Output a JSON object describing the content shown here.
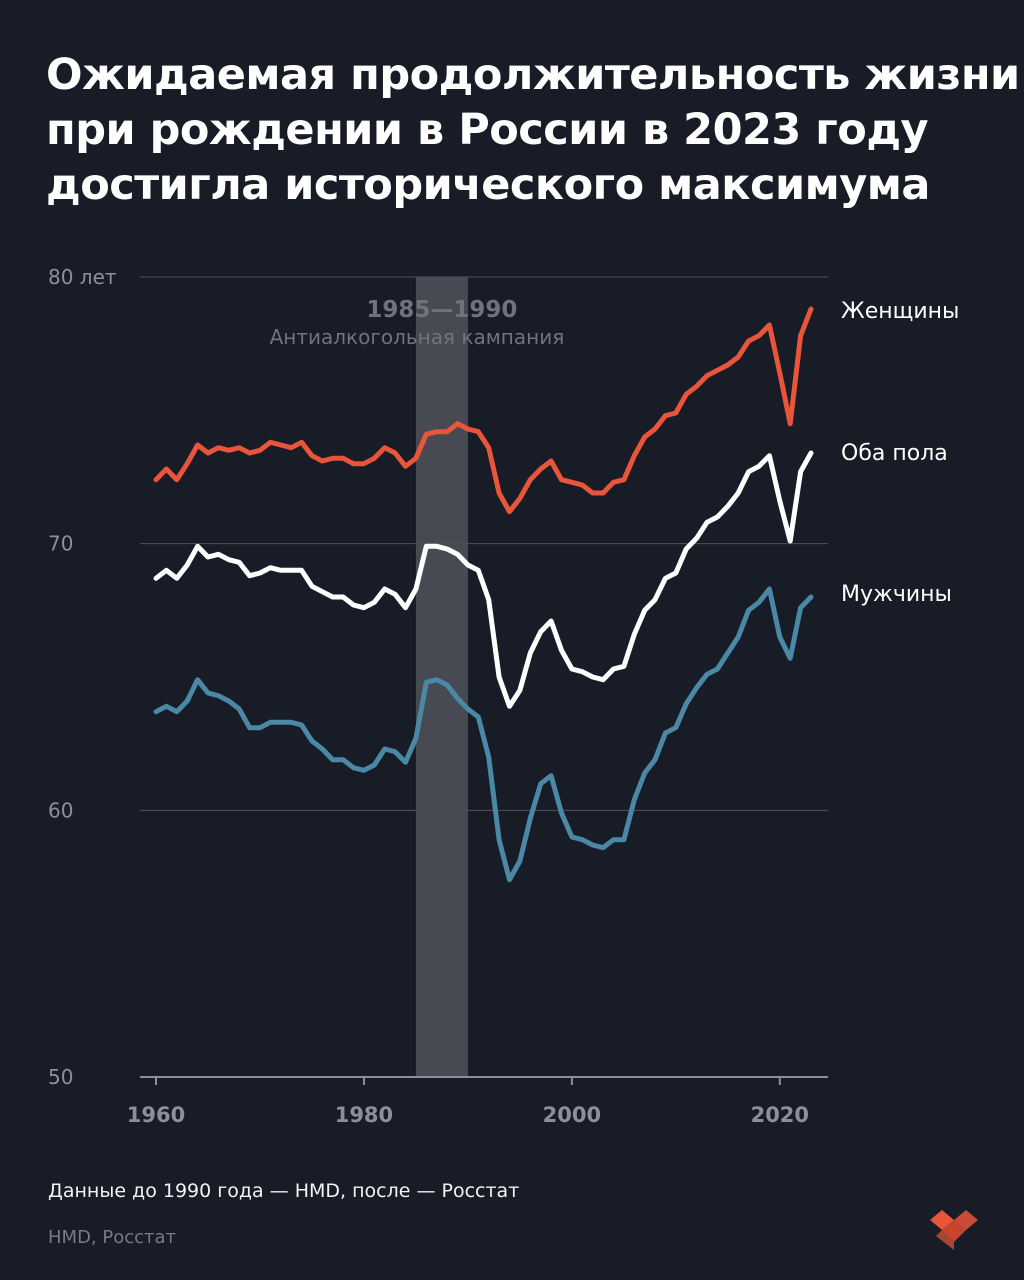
{
  "title_lines": [
    "Ожидаемая продолжительность жизни",
    "при рождении в России в 2023 году",
    "достигла исторического максимума"
  ],
  "note": "Данные до 1990 года — HMD, после — Росстат",
  "source": "HMD, Росстат",
  "colors": {
    "background": "#181c26",
    "women": "#e8553a",
    "both": "#ffffff",
    "men": "#4a88a6",
    "band": "#4a4d55",
    "grid": "#4d525d",
    "tick_text": "#8b909c",
    "logo": "#e8553a"
  },
  "logo_icon": "heart-logo-icon",
  "chart_data": {
    "type": "line",
    "xlim": [
      1960,
      2023
    ],
    "ylim": [
      50,
      80
    ],
    "y_ticks": [
      {
        "value": 80,
        "label": "80 лет"
      },
      {
        "value": 70,
        "label": "70"
      },
      {
        "value": 60,
        "label": "60"
      },
      {
        "value": 50,
        "label": "50"
      }
    ],
    "x_ticks": [
      {
        "value": 1960,
        "label": "1960"
      },
      {
        "value": 1980,
        "label": "1980"
      },
      {
        "value": 2000,
        "label": "2000"
      },
      {
        "value": 2020,
        "label": "2020"
      }
    ],
    "grid": true,
    "highlight": {
      "x_from": 1985,
      "x_to": 1990,
      "label_years": "1985—1990",
      "label_text": "Антиалкогольная кампания"
    },
    "x": [
      1960,
      1961,
      1962,
      1963,
      1964,
      1965,
      1966,
      1967,
      1968,
      1969,
      1970,
      1971,
      1972,
      1973,
      1974,
      1975,
      1976,
      1977,
      1978,
      1979,
      1980,
      1981,
      1982,
      1983,
      1984,
      1985,
      1986,
      1987,
      1988,
      1989,
      1990,
      1991,
      1992,
      1993,
      1994,
      1995,
      1996,
      1997,
      1998,
      1999,
      2000,
      2001,
      2002,
      2003,
      2004,
      2005,
      2006,
      2007,
      2008,
      2009,
      2010,
      2011,
      2012,
      2013,
      2014,
      2015,
      2016,
      2017,
      2018,
      2019,
      2020,
      2021,
      2022,
      2023
    ],
    "series": [
      {
        "name": "Женщины",
        "color": "#e8553a",
        "values": [
          72.4,
          72.8,
          72.4,
          73.0,
          73.7,
          73.4,
          73.6,
          73.5,
          73.6,
          73.4,
          73.5,
          73.8,
          73.7,
          73.6,
          73.8,
          73.3,
          73.1,
          73.2,
          73.2,
          73.0,
          73.0,
          73.2,
          73.6,
          73.4,
          72.9,
          73.2,
          74.1,
          74.2,
          74.2,
          74.5,
          74.3,
          74.2,
          73.6,
          71.9,
          71.2,
          71.7,
          72.4,
          72.8,
          73.1,
          72.4,
          72.3,
          72.2,
          71.9,
          71.9,
          72.3,
          72.4,
          73.3,
          74.0,
          74.3,
          74.8,
          74.9,
          75.6,
          75.9,
          76.3,
          76.5,
          76.7,
          77.0,
          77.6,
          77.8,
          78.2,
          76.4,
          74.5,
          77.8,
          78.8
        ]
      },
      {
        "name": "Оба пола",
        "color": "#ffffff",
        "values": [
          68.7,
          69.0,
          68.7,
          69.2,
          69.9,
          69.5,
          69.6,
          69.4,
          69.3,
          68.8,
          68.9,
          69.1,
          69.0,
          69.0,
          69.0,
          68.4,
          68.2,
          68.0,
          68.0,
          67.7,
          67.6,
          67.8,
          68.3,
          68.1,
          67.6,
          68.3,
          69.9,
          69.9,
          69.8,
          69.6,
          69.2,
          69.0,
          67.9,
          65.0,
          63.9,
          64.5,
          65.9,
          66.7,
          67.1,
          66.0,
          65.3,
          65.2,
          65.0,
          64.9,
          65.3,
          65.4,
          66.6,
          67.5,
          67.9,
          68.7,
          68.9,
          69.8,
          70.2,
          70.8,
          71.0,
          71.4,
          71.9,
          72.7,
          72.9,
          73.3,
          71.6,
          70.1,
          72.7,
          73.4
        ]
      },
      {
        "name": "Мужчины",
        "color": "#4a88a6",
        "values": [
          63.7,
          63.9,
          63.7,
          64.1,
          64.9,
          64.4,
          64.3,
          64.1,
          63.8,
          63.1,
          63.1,
          63.3,
          63.3,
          63.3,
          63.2,
          62.6,
          62.3,
          61.9,
          61.9,
          61.6,
          61.5,
          61.7,
          62.3,
          62.2,
          61.8,
          62.7,
          64.8,
          64.9,
          64.7,
          64.2,
          63.8,
          63.5,
          62.0,
          58.9,
          57.4,
          58.1,
          59.7,
          61.0,
          61.3,
          59.9,
          59.0,
          58.9,
          58.7,
          58.6,
          58.9,
          58.9,
          60.4,
          61.4,
          61.9,
          62.9,
          63.1,
          64.0,
          64.6,
          65.1,
          65.3,
          65.9,
          66.5,
          67.5,
          67.8,
          68.3,
          66.5,
          65.7,
          67.6,
          68.0
        ]
      }
    ]
  }
}
